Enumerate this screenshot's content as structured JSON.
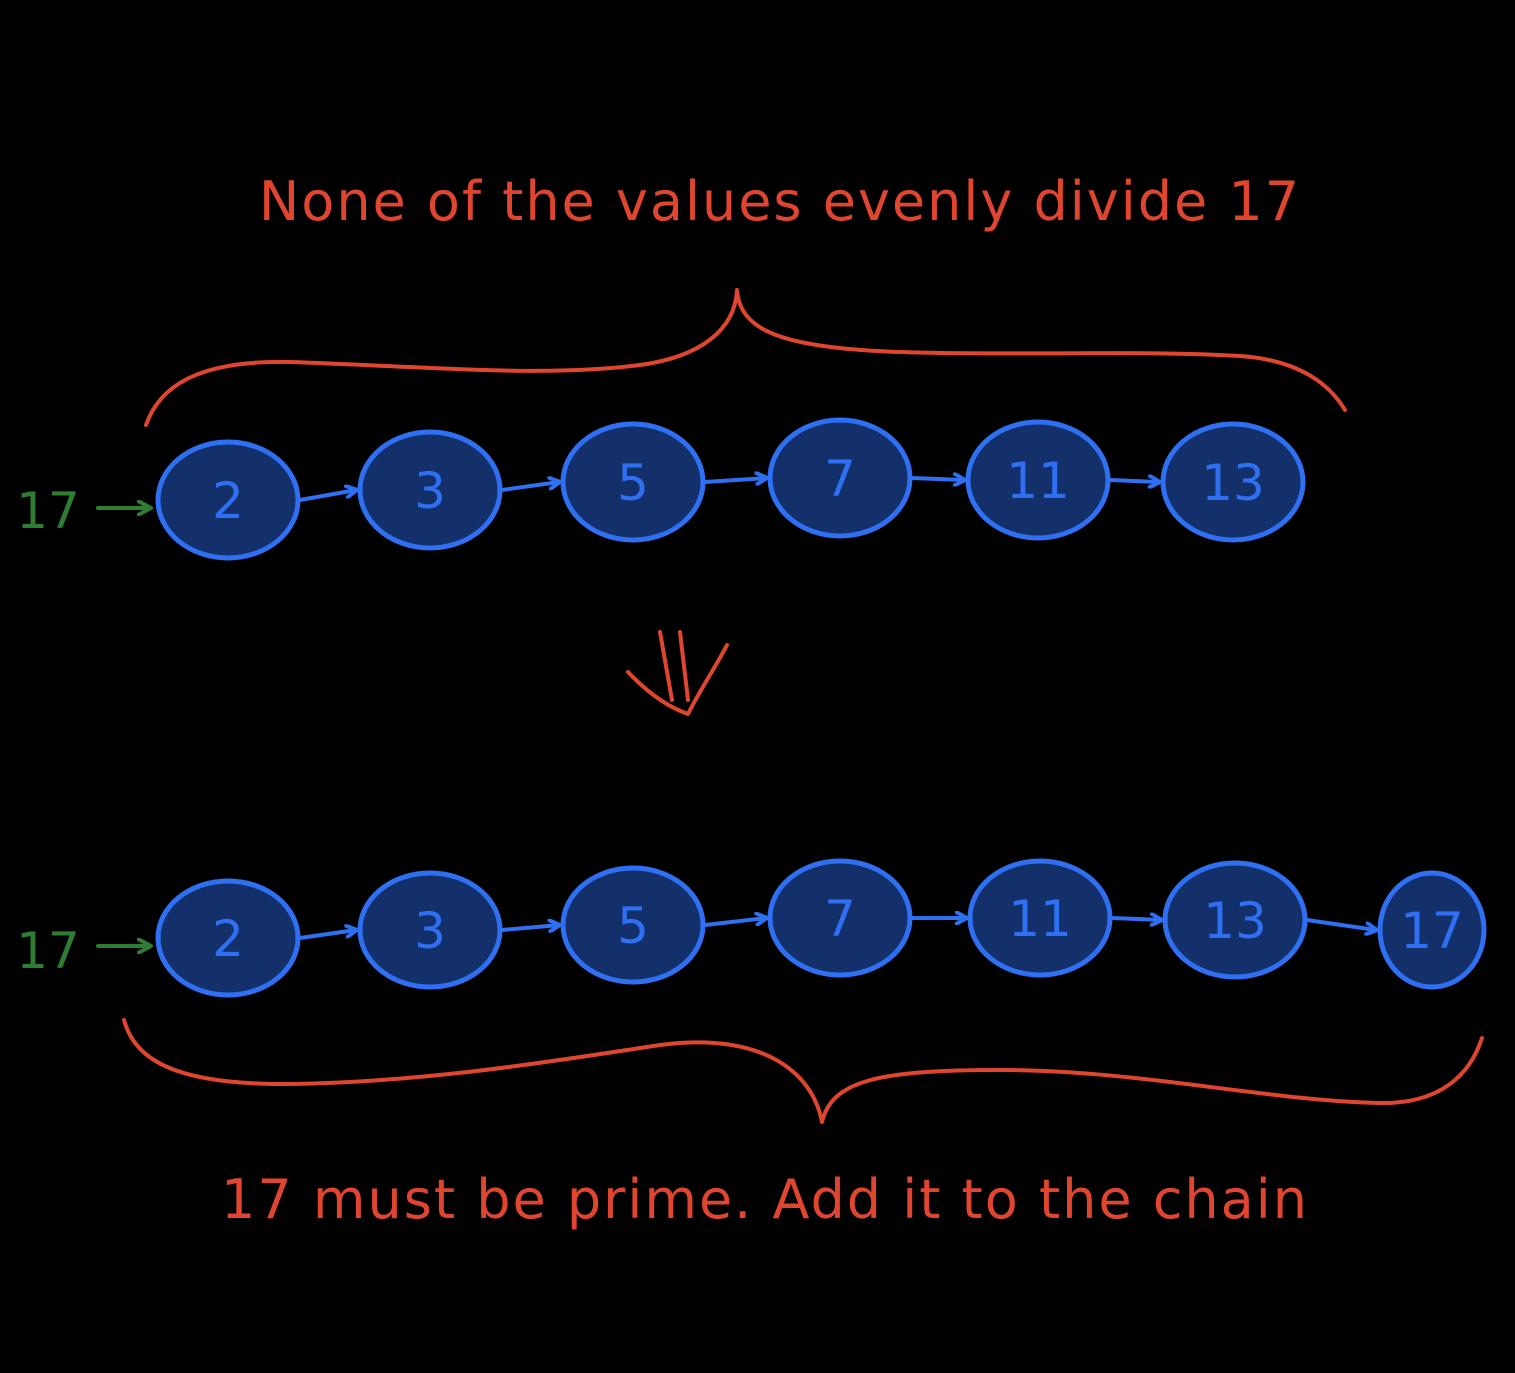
{
  "colors": {
    "background": "#000000",
    "annotation": "#e0462f",
    "node_fill": "#14306b",
    "node_stroke": "#2f6ff2",
    "node_text": "#2f6ff2",
    "chain_arrow": "#2f6ff2",
    "input": "#2e7d32"
  },
  "top": {
    "caption": "None of the values evenly divide 17",
    "input_value": "17",
    "chain": [
      "2",
      "3",
      "5",
      "7",
      "11",
      "13"
    ]
  },
  "transition": {
    "icon": "double-down-arrow-icon"
  },
  "bottom": {
    "input_value": "17",
    "chain": [
      "2",
      "3",
      "5",
      "7",
      "11",
      "13",
      "17"
    ],
    "caption": "17 must be prime. Add it to the chain"
  }
}
